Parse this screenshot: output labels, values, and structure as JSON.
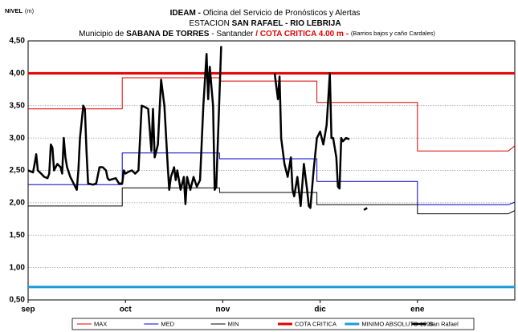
{
  "chart_data": {
    "type": "line",
    "title": [
      "IDEAM -",
      "Oficina del Servicio de Pronósticos y Alertas"
    ],
    "subtitle": [
      "ESTACION",
      "SAN RAFAEL - RIO LEBRIJA"
    ],
    "subtitle2": [
      "Municipio de",
      "SABANA DE TORRES",
      "- Santander",
      "/",
      "COTA CRITICA 4.00 m -",
      "(Barrios bajos y caño Cardales)"
    ],
    "y_label": [
      "NIVEL",
      "(m)"
    ],
    "xlim": [
      0,
      150
    ],
    "xticks": [
      {
        "value": 0,
        "label": "sep"
      },
      {
        "value": 30,
        "label": "oct"
      },
      {
        "value": 60,
        "label": "nov"
      },
      {
        "value": 90,
        "label": "dic"
      },
      {
        "value": 120,
        "label": "ene"
      }
    ],
    "ylim": [
      0.5,
      4.5
    ],
    "yticks": [
      {
        "value": 0.5,
        "label": "0,50"
      },
      {
        "value": 1.0,
        "label": "1,00"
      },
      {
        "value": 1.5,
        "label": "1,50"
      },
      {
        "value": 2.0,
        "label": "2,00"
      },
      {
        "value": 2.5,
        "label": "2,50"
      },
      {
        "value": 3.0,
        "label": "3,00"
      },
      {
        "value": 3.5,
        "label": "3,50"
      },
      {
        "value": 4.0,
        "label": "4,00"
      },
      {
        "value": 4.5,
        "label": "4,50"
      }
    ],
    "grid": true,
    "legend": "bottom",
    "series": [
      {
        "name": "MAX",
        "color": "#e00000",
        "line_width": 1,
        "x": [
          0,
          29,
          29,
          59,
          59,
          89,
          89,
          120,
          120,
          148,
          150
        ],
        "values": [
          3.45,
          3.45,
          3.93,
          3.93,
          3.88,
          3.88,
          3.55,
          3.55,
          2.8,
          2.8,
          2.88
        ]
      },
      {
        "name": "MED",
        "color": "#0000cc",
        "line_width": 1,
        "x": [
          0,
          29,
          29,
          59,
          59,
          89,
          89,
          120,
          120,
          148,
          150
        ],
        "values": [
          2.28,
          2.28,
          2.77,
          2.77,
          2.68,
          2.68,
          2.33,
          2.33,
          1.97,
          1.97,
          2.01
        ]
      },
      {
        "name": "MIN",
        "color": "#000000",
        "line_width": 1,
        "x": [
          0,
          29,
          29,
          59,
          59,
          89,
          89,
          120,
          120,
          148,
          150
        ],
        "values": [
          1.95,
          1.95,
          2.23,
          2.23,
          2.16,
          2.16,
          1.97,
          1.97,
          1.83,
          1.83,
          1.88
        ]
      },
      {
        "name": "COTA CRITICA",
        "color": "#e00000",
        "line_width": 3,
        "x": [
          0,
          150
        ],
        "values": [
          4.0,
          4.0
        ]
      },
      {
        "name": "MINIMO ABSOLUTO 1998",
        "color": "#1a9bd7",
        "line_width": 3,
        "x": [
          0,
          150
        ],
        "values": [
          0.7,
          0.7
        ]
      },
      {
        "name": "San Rafael",
        "color": "#000000",
        "line_width": 2.5,
        "x": [
          0,
          1.5,
          2,
          2.5,
          3,
          4,
          5,
          6,
          6.5,
          7,
          7.5,
          8,
          9,
          10,
          10.5,
          11,
          11.5,
          12,
          13,
          14,
          15,
          15.5,
          16,
          17,
          17.5,
          18,
          18.5,
          20,
          21,
          22,
          23,
          24,
          24.5,
          25,
          27,
          28,
          29,
          29.5,
          30,
          31,
          32,
          33,
          34,
          35,
          36,
          37,
          38,
          38.5,
          39,
          40,
          41,
          42,
          43,
          43.5,
          44,
          45,
          45.5,
          46,
          47,
          48,
          48.5,
          49,
          50,
          51,
          52,
          53,
          54,
          55,
          55.5,
          56,
          57,
          57.5,
          58,
          59,
          59.5,
          null,
          76,
          77,
          77.5,
          78,
          79,
          80,
          81,
          81.5,
          82,
          83,
          84,
          85,
          86,
          86.5,
          87,
          88,
          89,
          90,
          91,
          92,
          93,
          93.5,
          94,
          95,
          95.5,
          96,
          96.5,
          97,
          98,
          99,
          null,
          103.5,
          104.5
        ],
        "values": [
          2.5,
          2.47,
          2.6,
          2.75,
          2.5,
          2.45,
          2.4,
          2.38,
          2.45,
          2.9,
          2.85,
          2.5,
          2.6,
          2.55,
          2.45,
          3.0,
          2.7,
          2.55,
          2.4,
          2.3,
          2.2,
          2.5,
          3.0,
          3.5,
          3.45,
          2.8,
          2.3,
          2.28,
          2.3,
          2.55,
          2.55,
          2.5,
          2.38,
          2.35,
          2.38,
          2.3,
          2.3,
          2.5,
          2.45,
          2.48,
          2.5,
          2.45,
          2.5,
          3.5,
          3.48,
          3.45,
          2.8,
          3.45,
          2.7,
          2.9,
          3.9,
          3.5,
          2.6,
          2.2,
          2.4,
          2.55,
          2.35,
          2.5,
          2.2,
          2.4,
          1.98,
          2.4,
          2.2,
          2.4,
          2.25,
          2.35,
          3.5,
          4.3,
          3.6,
          4.1,
          3.5,
          2.2,
          2.25,
          3.7,
          4.42,
          null,
          4.0,
          3.6,
          3.95,
          3.0,
          2.6,
          2.4,
          2.7,
          2.2,
          2.1,
          2.4,
          1.95,
          2.6,
          2.2,
          1.95,
          1.92,
          2.5,
          3.0,
          3.1,
          2.9,
          3.2,
          4.0,
          3.0,
          3.0,
          2.7,
          2.25,
          2.22,
          3.0,
          2.95,
          3.0,
          2.98,
          null,
          1.89,
          1.92
        ]
      }
    ]
  }
}
